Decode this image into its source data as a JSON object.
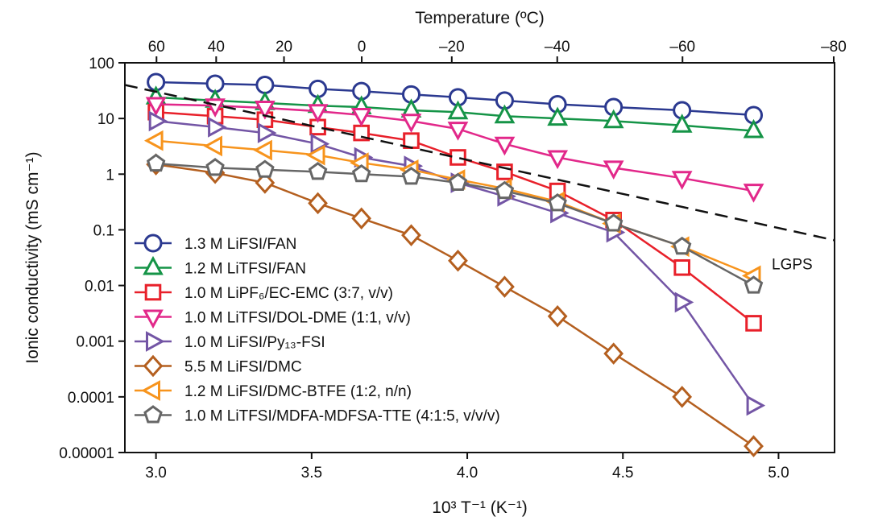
{
  "chart_data": {
    "type": "scatter",
    "title": "",
    "xlabel": "10³ T⁻¹ (K⁻¹)",
    "ylabel": "Ionic conductivity (mS cm⁻¹)",
    "top_xlabel": "Temperature (ºC)",
    "yscale": "log",
    "xlim": [
      2.9,
      5.18
    ],
    "ylim": [
      1e-05,
      100
    ],
    "x_ticks": [
      3.0,
      3.5,
      4.0,
      4.5,
      5.0
    ],
    "x_tick_labels": [
      "3.0",
      "3.5",
      "4.0",
      "4.5",
      "5.0"
    ],
    "y_ticks": [
      100,
      10,
      1,
      0.1,
      0.01,
      0.001,
      0.0001,
      1e-05
    ],
    "y_tick_labels": [
      "100",
      "10",
      "1",
      "0.1",
      "0.01",
      "0.001",
      "0.0001",
      "0.00001"
    ],
    "top_ticks": [
      60,
      40,
      20,
      0,
      -20,
      -40,
      -60,
      -80
    ],
    "top_tick_labels": [
      "60",
      "40",
      "20",
      "0",
      "–20",
      "–40",
      "–60",
      "–80"
    ],
    "legend_position": "bottom-left",
    "grid": false,
    "series": [
      {
        "name": "1.3 M LiFSI/FAN",
        "color": "#2b3990",
        "marker": "circle",
        "x": [
          3.0,
          3.19,
          3.35,
          3.52,
          3.66,
          3.82,
          3.97,
          4.12,
          4.29,
          4.47,
          4.69,
          4.92
        ],
        "y": [
          45,
          42,
          40,
          34,
          31,
          27,
          24,
          21,
          18,
          16,
          14,
          11.5
        ]
      },
      {
        "name": "1.2 M LiTFSI/FAN",
        "color": "#159447",
        "marker": "triangle-up",
        "x": [
          3.0,
          3.19,
          3.35,
          3.52,
          3.66,
          3.82,
          3.97,
          4.12,
          4.29,
          4.47,
          4.69,
          4.92
        ],
        "y": [
          24,
          21,
          19,
          17,
          16,
          14,
          13,
          11,
          10,
          9,
          7.5,
          6
        ]
      },
      {
        "name": "1.0 M LiPF₆/EC-EMC (3:7, v/v)",
        "color": "#e8202a",
        "marker": "square",
        "x": [
          3.0,
          3.19,
          3.35,
          3.52,
          3.66,
          3.82,
          3.97,
          4.12,
          4.29,
          4.47,
          4.69,
          4.92
        ],
        "y": [
          13,
          11,
          9.5,
          7,
          5.5,
          4,
          2,
          1.1,
          0.5,
          0.15,
          0.021,
          0.0021
        ]
      },
      {
        "name": "1.0 M LiTFSI/DOL-DME (1:1, v/v)",
        "color": "#e2288a",
        "marker": "triangle-down",
        "x": [
          3.0,
          3.19,
          3.35,
          3.52,
          3.66,
          3.82,
          3.97,
          4.12,
          4.29,
          4.47,
          4.69,
          4.92
        ],
        "y": [
          18,
          17,
          15.5,
          13.5,
          11.5,
          9,
          6.5,
          3.5,
          2,
          1.3,
          0.85,
          0.5
        ]
      },
      {
        "name": "1.0 M LiFSI/Py₁₃-FSI",
        "color": "#7355a5",
        "marker": "triangle-right",
        "x": [
          3.0,
          3.19,
          3.35,
          3.52,
          3.66,
          3.82,
          3.97,
          4.12,
          4.29,
          4.47,
          4.69,
          4.92
        ],
        "y": [
          9,
          7,
          5.5,
          3.5,
          2,
          1.4,
          0.7,
          0.4,
          0.2,
          0.09,
          0.005,
          7e-05
        ]
      },
      {
        "name": "5.5 M LiFSI/DMC",
        "color": "#b45f1f",
        "marker": "diamond",
        "x": [
          3.0,
          3.19,
          3.35,
          3.52,
          3.66,
          3.82,
          3.97,
          4.12,
          4.29,
          4.47,
          4.69,
          4.92
        ],
        "y": [
          1.5,
          1.05,
          0.7,
          0.3,
          0.16,
          0.08,
          0.028,
          0.0095,
          0.0028,
          0.0006,
          0.0001,
          1.3e-05
        ]
      },
      {
        "name": "1.2 M LiFSI/DMC-BTFE (1:2, n/n)",
        "color": "#f7941d",
        "marker": "triangle-left",
        "x": [
          3.0,
          3.19,
          3.35,
          3.52,
          3.66,
          3.82,
          3.97,
          4.12,
          4.29,
          4.47,
          4.69,
          4.92
        ],
        "y": [
          4,
          3.2,
          2.7,
          2.2,
          1.6,
          1.2,
          0.8,
          0.55,
          0.32,
          0.13,
          0.05,
          0.015
        ]
      },
      {
        "name": "1.0 M LiTFSI/MDFA-MDFSA-TTE (4:1:5, v/v/v)",
        "color": "#666666",
        "marker": "pentagon",
        "x": [
          3.0,
          3.19,
          3.35,
          3.52,
          3.66,
          3.82,
          3.97,
          4.12,
          4.29,
          4.47,
          4.69,
          4.92
        ],
        "y": [
          1.55,
          1.3,
          1.2,
          1.1,
          1.0,
          0.9,
          0.7,
          0.5,
          0.3,
          0.13,
          0.05,
          0.01
        ]
      }
    ],
    "reference_line": {
      "name": "LGPS",
      "style": "dashed",
      "color": "#111111",
      "x": [
        2.9,
        5.18
      ],
      "y": [
        40,
        0.065
      ]
    }
  }
}
